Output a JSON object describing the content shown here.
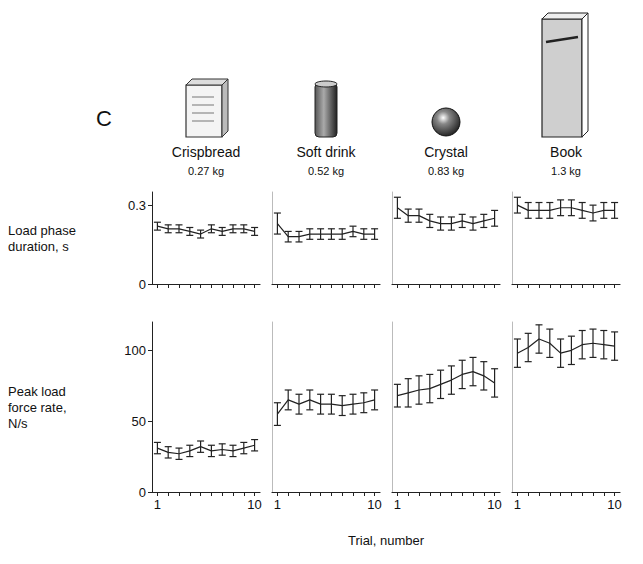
{
  "panel_label": "C",
  "xlabel": "Trial, number",
  "chart_data": [
    {
      "type": "line",
      "title": "Crispbread",
      "subtitle": "0.27 kg",
      "ylabel": "Load phase duration, s",
      "x": [
        1,
        2,
        3,
        4,
        5,
        6,
        7,
        8,
        9,
        10
      ],
      "values": [
        0.22,
        0.21,
        0.21,
        0.2,
        0.19,
        0.21,
        0.2,
        0.21,
        0.21,
        0.2
      ],
      "errors": [
        0.015,
        0.015,
        0.015,
        0.015,
        0.015,
        0.015,
        0.015,
        0.015,
        0.015,
        0.015
      ],
      "color": "#222222",
      "xlim": [
        0.5,
        10.5
      ],
      "xticks": [
        1,
        10
      ],
      "ylim": [
        0,
        0.35
      ],
      "yticks": [
        0,
        0.3
      ],
      "tick_labels": "y"
    },
    {
      "type": "line",
      "title": "Soft drink",
      "subtitle": "0.52 kg",
      "x": [
        1,
        2,
        3,
        4,
        5,
        6,
        7,
        8,
        9,
        10
      ],
      "values": [
        0.23,
        0.18,
        0.18,
        0.19,
        0.19,
        0.19,
        0.19,
        0.2,
        0.19,
        0.19
      ],
      "errors": [
        0.04,
        0.02,
        0.02,
        0.02,
        0.02,
        0.02,
        0.02,
        0.02,
        0.02,
        0.02
      ],
      "color": "#222222",
      "xlim": [
        0.5,
        10.5
      ],
      "xticks": [
        1,
        10
      ],
      "ylim": [
        0,
        0.35
      ],
      "yticks": [
        0,
        0.3
      ],
      "tick_labels": false
    },
    {
      "type": "line",
      "title": "Crystal",
      "subtitle": "0.83 kg",
      "x": [
        1,
        2,
        3,
        4,
        5,
        6,
        7,
        8,
        9,
        10
      ],
      "values": [
        0.29,
        0.26,
        0.26,
        0.24,
        0.23,
        0.23,
        0.24,
        0.23,
        0.24,
        0.25
      ],
      "errors": [
        0.04,
        0.025,
        0.025,
        0.025,
        0.025,
        0.025,
        0.025,
        0.025,
        0.025,
        0.03
      ],
      "color": "#222222",
      "xlim": [
        0.5,
        10.5
      ],
      "xticks": [
        1,
        10
      ],
      "ylim": [
        0,
        0.35
      ],
      "yticks": [
        0,
        0.3
      ],
      "tick_labels": false
    },
    {
      "type": "line",
      "title": "Book",
      "subtitle": "1.3 kg",
      "x": [
        1,
        2,
        3,
        4,
        5,
        6,
        7,
        8,
        9,
        10
      ],
      "values": [
        0.3,
        0.28,
        0.28,
        0.28,
        0.29,
        0.29,
        0.28,
        0.27,
        0.28,
        0.28
      ],
      "errors": [
        0.03,
        0.03,
        0.03,
        0.03,
        0.03,
        0.03,
        0.03,
        0.03,
        0.03,
        0.03
      ],
      "color": "#222222",
      "xlim": [
        0.5,
        10.5
      ],
      "xticks": [
        1,
        10
      ],
      "ylim": [
        0,
        0.35
      ],
      "yticks": [
        0,
        0.3
      ],
      "tick_labels": false
    },
    {
      "type": "line",
      "ylabel": "Peak load force rate, N/s",
      "x": [
        1,
        2,
        3,
        4,
        5,
        6,
        7,
        8,
        9,
        10
      ],
      "values": [
        31,
        28,
        27,
        29,
        32,
        29,
        30,
        29,
        31,
        33
      ],
      "errors": [
        4,
        4,
        4,
        4,
        4,
        4,
        4,
        4,
        4,
        4
      ],
      "color": "#222222",
      "xlim": [
        0.5,
        10.5
      ],
      "xticks": [
        1,
        10
      ],
      "ylim": [
        0,
        120
      ],
      "yticks": [
        0,
        50,
        100
      ],
      "tick_labels": true
    },
    {
      "type": "line",
      "x": [
        1,
        2,
        3,
        4,
        5,
        6,
        7,
        8,
        9,
        10
      ],
      "values": [
        55,
        65,
        62,
        65,
        62,
        62,
        61,
        62,
        63,
        65
      ],
      "errors": [
        8,
        7,
        7,
        7,
        7,
        7,
        7,
        7,
        7,
        7
      ],
      "color": "#222222",
      "xlim": [
        0.5,
        10.5
      ],
      "xticks": [
        1,
        10
      ],
      "ylim": [
        0,
        120
      ],
      "yticks": [
        0,
        50,
        100
      ],
      "tick_labels": "x"
    },
    {
      "type": "line",
      "x": [
        1,
        2,
        3,
        4,
        5,
        6,
        7,
        8,
        9,
        10
      ],
      "values": [
        68,
        70,
        72,
        73,
        76,
        79,
        83,
        85,
        82,
        77
      ],
      "errors": [
        8,
        10,
        10,
        10,
        10,
        10,
        10,
        10,
        10,
        10
      ],
      "color": "#222222",
      "xlim": [
        0.5,
        10.5
      ],
      "xticks": [
        1,
        10
      ],
      "ylim": [
        0,
        120
      ],
      "yticks": [
        0,
        50,
        100
      ],
      "tick_labels": "x"
    },
    {
      "type": "line",
      "x": [
        1,
        2,
        3,
        4,
        5,
        6,
        7,
        8,
        9,
        10
      ],
      "values": [
        98,
        102,
        108,
        105,
        98,
        100,
        104,
        105,
        104,
        103
      ],
      "errors": [
        10,
        10,
        10,
        10,
        10,
        10,
        10,
        10,
        10,
        10
      ],
      "color": "#222222",
      "xlim": [
        0.5,
        10.5
      ],
      "xticks": [
        1,
        10
      ],
      "ylim": [
        0,
        120
      ],
      "yticks": [
        0,
        50,
        100
      ],
      "tick_labels": "x"
    }
  ]
}
